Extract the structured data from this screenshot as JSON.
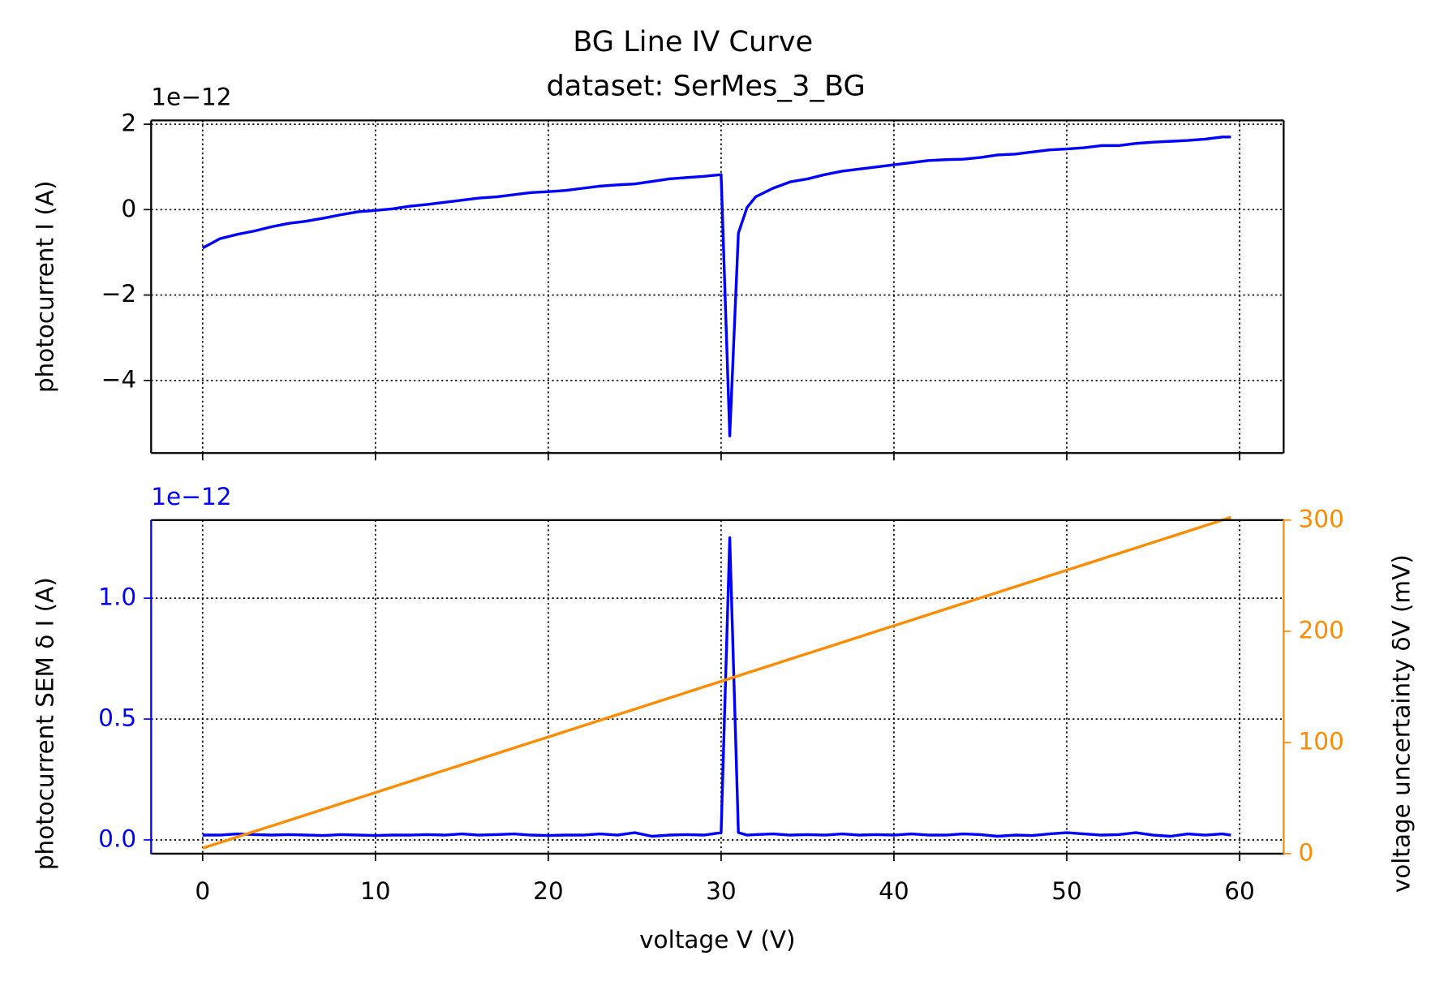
{
  "chart_data": [
    {
      "type": "line",
      "title": "BG Line IV Curve",
      "subtitle": "dataset: SerMes_3_BG",
      "ylabel": "photocurrent I (A)",
      "y_offset_label": "1e−12",
      "x": [
        0,
        1,
        2,
        3,
        4,
        5,
        6,
        7,
        8,
        9,
        10,
        11,
        12,
        13,
        14,
        15,
        16,
        17,
        18,
        19,
        20,
        21,
        22,
        23,
        24,
        25,
        26,
        27,
        28,
        29,
        30,
        30.5,
        31,
        31.5,
        32,
        33,
        34,
        35,
        36,
        37,
        38,
        39,
        40,
        41,
        42,
        43,
        44,
        45,
        46,
        47,
        48,
        49,
        50,
        51,
        52,
        53,
        54,
        55,
        56,
        57,
        58,
        59,
        59.5
      ],
      "series": [
        {
          "color": "#0000ff",
          "values": [
            -0.9,
            -0.68,
            -0.58,
            -0.5,
            -0.4,
            -0.32,
            -0.27,
            -0.2,
            -0.12,
            -0.05,
            -0.02,
            0.02,
            0.08,
            0.12,
            0.17,
            0.22,
            0.27,
            0.3,
            0.35,
            0.4,
            0.42,
            0.45,
            0.5,
            0.55,
            0.58,
            0.6,
            0.66,
            0.72,
            0.75,
            0.78,
            0.82,
            -5.3,
            -0.55,
            0.05,
            0.3,
            0.5,
            0.65,
            0.72,
            0.82,
            0.9,
            0.95,
            1.0,
            1.05,
            1.1,
            1.15,
            1.17,
            1.18,
            1.22,
            1.28,
            1.3,
            1.35,
            1.4,
            1.42,
            1.45,
            1.5,
            1.5,
            1.55,
            1.58,
            1.6,
            1.62,
            1.65,
            1.7,
            1.7
          ]
        }
      ],
      "xlim": [
        -2.98,
        62.55
      ],
      "ylim": [
        -5.7,
        2.09
      ],
      "xticks": [
        0,
        10,
        20,
        30,
        40,
        50,
        60
      ],
      "show_xtick_labels": false,
      "yticks": [
        {
          "value": -4,
          "label": "−4"
        },
        {
          "value": -2,
          "label": "−2"
        },
        0,
        2
      ],
      "grid": true
    },
    {
      "type": "line",
      "ylabel": "photocurrent SEM δ I (A)",
      "y_offset_label": "1e−12",
      "y2label": "voltage uncertainty δV (mV)",
      "xlabel": "voltage V (V)",
      "ycolor": "#0000ff",
      "y2color": "#ff8c00",
      "x": [
        0,
        1,
        2,
        3,
        4,
        5,
        6,
        7,
        8,
        9,
        10,
        11,
        12,
        13,
        14,
        15,
        16,
        17,
        18,
        19,
        20,
        21,
        22,
        23,
        24,
        25,
        26,
        27,
        28,
        29,
        30,
        30.5,
        31,
        31.5,
        32,
        33,
        34,
        35,
        36,
        37,
        38,
        39,
        40,
        41,
        42,
        43,
        44,
        45,
        46,
        47,
        48,
        49,
        50,
        51,
        52,
        53,
        54,
        55,
        56,
        57,
        58,
        59,
        59.5
      ],
      "series": [
        {
          "color": "#0000ff",
          "values": [
            0.02,
            0.02,
            0.025,
            0.022,
            0.02,
            0.022,
            0.02,
            0.018,
            0.022,
            0.02,
            0.018,
            0.02,
            0.02,
            0.022,
            0.02,
            0.025,
            0.02,
            0.022,
            0.025,
            0.02,
            0.018,
            0.02,
            0.02,
            0.025,
            0.02,
            0.03,
            0.015,
            0.02,
            0.022,
            0.02,
            0.03,
            1.25,
            0.03,
            0.02,
            0.022,
            0.025,
            0.02,
            0.022,
            0.02,
            0.025,
            0.02,
            0.022,
            0.02,
            0.025,
            0.02,
            0.02,
            0.025,
            0.022,
            0.015,
            0.02,
            0.018,
            0.025,
            0.03,
            0.025,
            0.02,
            0.022,
            0.03,
            0.02,
            0.015,
            0.025,
            0.02,
            0.025,
            0.02
          ]
        },
        {
          "color": "#ff8c00",
          "axis": "y2",
          "values": [
            5,
            10,
            15,
            20,
            25,
            30,
            35,
            40,
            45,
            50,
            55,
            60,
            65,
            70,
            75,
            80,
            85,
            90,
            95,
            100,
            105,
            110,
            115,
            120,
            125,
            130,
            135,
            140,
            145,
            150,
            155,
            157.5,
            160,
            162.5,
            165,
            170,
            175,
            180,
            185,
            190,
            195,
            200,
            205,
            210,
            215,
            220,
            225,
            230,
            235,
            240,
            245,
            250,
            255,
            260,
            265,
            270,
            275,
            280,
            285,
            290,
            295,
            300,
            302.5
          ]
        }
      ],
      "xlim": [
        -2.98,
        62.55
      ],
      "ylim": [
        -0.057,
        1.323
      ],
      "y2lim": [
        0,
        300
      ],
      "xticks": [
        0,
        10,
        20,
        30,
        40,
        50,
        60
      ],
      "show_xtick_labels": true,
      "yticks": [
        {
          "value": 0,
          "label": "0.0"
        },
        {
          "value": 0.5,
          "label": "0.5"
        },
        {
          "value": 1,
          "label": "1.0"
        }
      ],
      "y2ticks": [
        0,
        100,
        200,
        300
      ],
      "grid": true
    }
  ]
}
